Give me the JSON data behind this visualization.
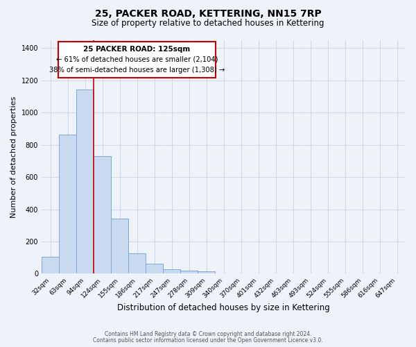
{
  "title": "25, PACKER ROAD, KETTERING, NN15 7RP",
  "subtitle": "Size of property relative to detached houses in Kettering",
  "xlabel": "Distribution of detached houses by size in Kettering",
  "ylabel": "Number of detached properties",
  "bar_labels": [
    "32sqm",
    "63sqm",
    "94sqm",
    "124sqm",
    "155sqm",
    "186sqm",
    "217sqm",
    "247sqm",
    "278sqm",
    "309sqm",
    "340sqm",
    "370sqm",
    "401sqm",
    "432sqm",
    "463sqm",
    "493sqm",
    "524sqm",
    "555sqm",
    "586sqm",
    "616sqm",
    "647sqm"
  ],
  "bar_values": [
    107,
    862,
    1141,
    730,
    340,
    128,
    62,
    30,
    20,
    14,
    0,
    0,
    0,
    0,
    0,
    0,
    0,
    0,
    0,
    0,
    0
  ],
  "bar_color": "#c9d9f0",
  "bar_edge_color": "#7ea8d4",
  "marker_line_color": "#cc0000",
  "marker_label_line1": "25 PACKER ROAD: 125sqm",
  "marker_label_line2": "← 61% of detached houses are smaller (2,104)",
  "marker_label_line3": "38% of semi-detached houses are larger (1,308) →",
  "annotation_box_facecolor": "#ffffff",
  "annotation_box_edgecolor": "#cc0000",
  "ylim": [
    0,
    1450
  ],
  "yticks": [
    0,
    200,
    400,
    600,
    800,
    1000,
    1200,
    1400
  ],
  "grid_color": "#d0d8e8",
  "footer1": "Contains HM Land Registry data © Crown copyright and database right 2024.",
  "footer2": "Contains public sector information licensed under the Open Government Licence v3.0.",
  "bg_color": "#eef2f9"
}
